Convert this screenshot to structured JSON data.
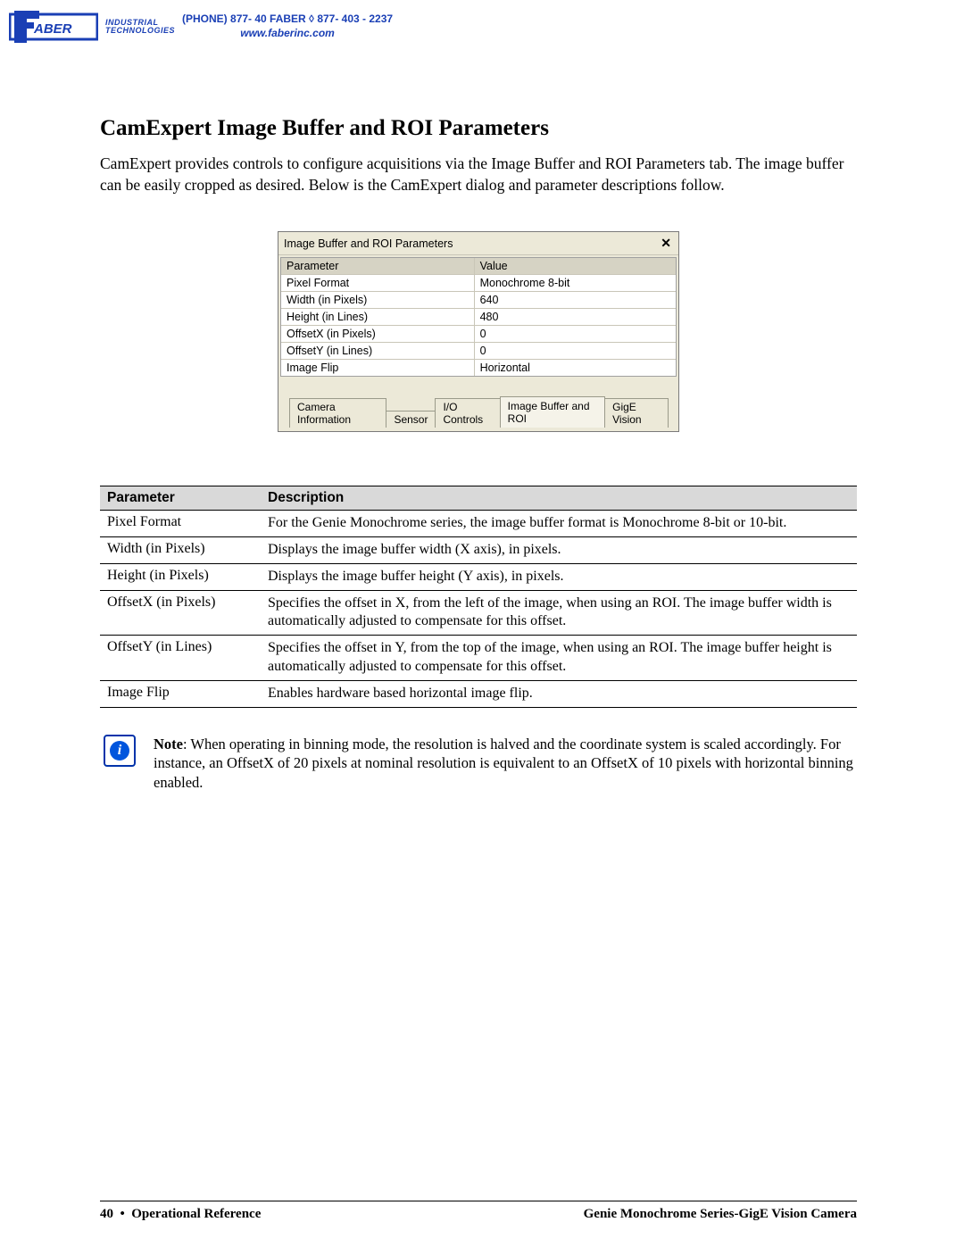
{
  "header": {
    "logo_name": "FABER",
    "logo_tag_line1": "INDUSTRIAL",
    "logo_tag_line2": "TECHNOLOGIES",
    "phone_line": "(PHONE) 877- 40 FABER  ◊  877- 403 - 2237",
    "url": "www.faberinc.com"
  },
  "title": "CamExpert Image Buffer and ROI Parameters",
  "intro": "CamExpert provides controls to configure acquisitions via the Image Buffer and ROI Parameters tab. The image buffer can be easily cropped as desired. Below is the CamExpert dialog and parameter descriptions follow.",
  "dialog": {
    "title": "Image Buffer and ROI Parameters",
    "col_param": "Parameter",
    "col_value": "Value",
    "rows": [
      {
        "p": "Pixel Format",
        "v": "Monochrome 8-bit"
      },
      {
        "p": "Width (in Pixels)",
        "v": "640"
      },
      {
        "p": "Height (in Lines)",
        "v": "480"
      },
      {
        "p": "OffsetX (in Pixels)",
        "v": "0"
      },
      {
        "p": "OffsetY (in Lines)",
        "v": "0"
      },
      {
        "p": "Image Flip",
        "v": "Horizontal"
      }
    ],
    "tabs": [
      "Camera Information",
      "Sensor",
      "I/O Controls",
      "Image Buffer and ROI",
      "GigE Vision"
    ],
    "active_tab_index": 3
  },
  "desc_table": {
    "head_param": "Parameter",
    "head_desc": "Description",
    "rows": [
      {
        "p": "Pixel Format",
        "d": "For the Genie Monochrome series, the image buffer format is Monochrome 8-bit or 10-bit."
      },
      {
        "p": "Width (in Pixels)",
        "d": "Displays the image buffer width (X axis), in pixels."
      },
      {
        "p": "Height (in Pixels)",
        "d": "Displays the image buffer height (Y axis), in pixels."
      },
      {
        "p": "OffsetX (in Pixels)",
        "d": "Specifies the offset in X, from the left of the image, when using an ROI. The image buffer width is automatically adjusted to compensate for this offset."
      },
      {
        "p": "OffsetY (in Lines)",
        "d": "Specifies the offset in Y, from the top of the image, when using an ROI. The image buffer height is automatically adjusted to compensate for this offset."
      },
      {
        "p": "Image Flip",
        "d": "Enables hardware based horizontal image flip."
      }
    ]
  },
  "note": {
    "label": "Note",
    "text": ": When operating in binning mode, the resolution is halved and the coordinate system is scaled accordingly. For instance, an OffsetX of 20 pixels at nominal resolution is equivalent to an OffsetX of 10 pixels with horizontal binning enabled."
  },
  "footer": {
    "left_page": "40",
    "left_sep": "•",
    "left_label": "Operational Reference",
    "right": "Genie Monochrome Series-GigE Vision Camera"
  },
  "colors": {
    "brand_blue": "#1a3fb5",
    "dialog_bg": "#ece9d8",
    "table_head_bg": "#d9d9d9"
  }
}
